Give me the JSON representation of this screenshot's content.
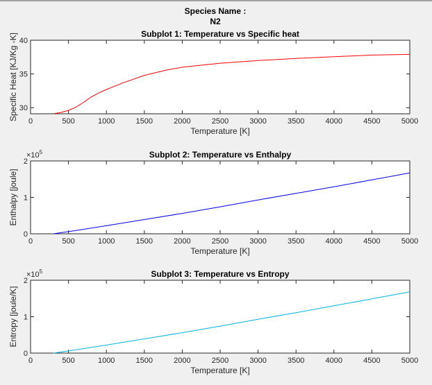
{
  "figure": {
    "title_line1": "Species Name :",
    "title_line2": "N2"
  },
  "chart_data": [
    {
      "type": "line",
      "title": "Subplot 1: Temperature vs Specific heat",
      "xlabel": "Temperature [K]",
      "ylabel": "Specific Heat [KJ/Kg -K]",
      "xlim": [
        0,
        5000
      ],
      "ylim": [
        29.1,
        40
      ],
      "xticks": [
        0,
        500,
        1000,
        1500,
        2000,
        2500,
        3000,
        3500,
        4000,
        4500,
        5000
      ],
      "yticks": [
        30,
        35,
        40
      ],
      "ytick_labels": [
        "30",
        "35",
        "40"
      ],
      "exponent_label": "",
      "color": "#ff0000",
      "x": [
        300,
        400,
        500,
        600,
        700,
        800,
        900,
        1000,
        1200,
        1500,
        1800,
        2000,
        2500,
        3000,
        3500,
        4000,
        4500,
        5000
      ],
      "y": [
        29.1,
        29.3,
        29.6,
        30.1,
        30.8,
        31.6,
        32.2,
        32.7,
        33.6,
        34.8,
        35.6,
        36.0,
        36.6,
        37.0,
        37.3,
        37.55,
        37.8,
        37.9
      ],
      "grid": false
    },
    {
      "type": "line",
      "title": "Subplot 2: Temperature vs Enthalpy",
      "xlabel": "Temperature [K]",
      "ylabel": "Enthalpy [joule]",
      "xlim": [
        0,
        5000
      ],
      "ylim": [
        0,
        200000
      ],
      "xticks": [
        0,
        500,
        1000,
        1500,
        2000,
        2500,
        3000,
        3500,
        4000,
        4500,
        5000
      ],
      "yticks": [
        0,
        100000,
        200000
      ],
      "ytick_labels": [
        "0",
        "1",
        "2"
      ],
      "exponent_label": "×10",
      "exponent": "5",
      "color": "#0000ff",
      "x": [
        300,
        500,
        1000,
        1500,
        2000,
        2500,
        3000,
        3500,
        4000,
        4500,
        5000
      ],
      "y": [
        0,
        5900,
        22000,
        39000,
        56000,
        74000,
        93000,
        111000,
        129000,
        148000,
        167000
      ],
      "grid": false
    },
    {
      "type": "line",
      "title": "Subplot 3: Temperature vs Entropy",
      "xlabel": "Temperature [K]",
      "ylabel": "Entropy [joule/K]",
      "xlim": [
        0,
        5000
      ],
      "ylim": [
        0,
        200000
      ],
      "xticks": [
        0,
        500,
        1000,
        1500,
        2000,
        2500,
        3000,
        3500,
        4000,
        4500,
        5000
      ],
      "yticks": [
        0,
        100000,
        200000
      ],
      "ytick_labels": [
        "0",
        "1",
        "2"
      ],
      "exponent_label": "×10",
      "exponent": "5",
      "color": "#00b4e6",
      "x": [
        300,
        500,
        1000,
        1500,
        2000,
        2500,
        3000,
        3500,
        4000,
        4500,
        5000
      ],
      "y": [
        0,
        5900,
        22000,
        39000,
        56000,
        74000,
        93000,
        111000,
        130000,
        149000,
        168000
      ],
      "grid": false
    }
  ]
}
